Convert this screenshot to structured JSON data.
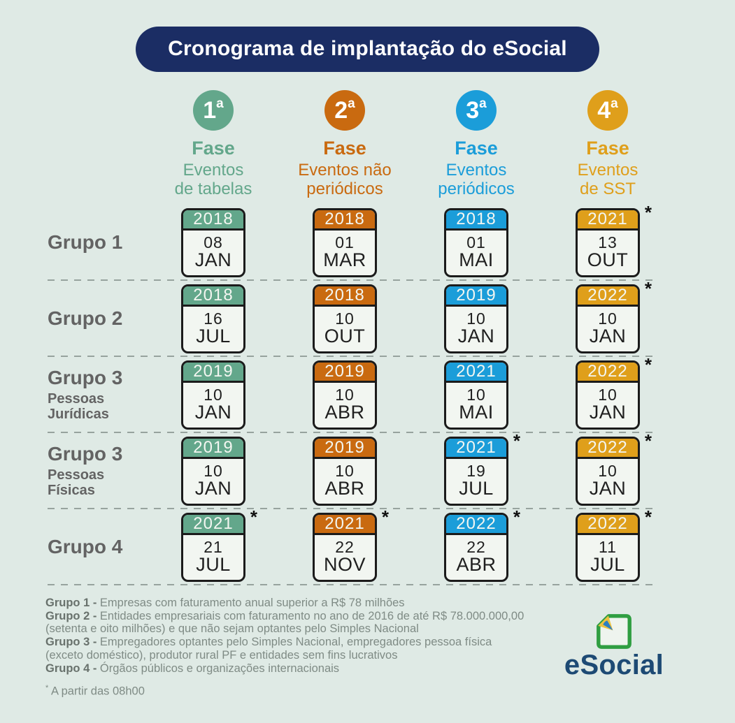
{
  "title": "Cronograma de implantação do eSocial",
  "phases": [
    {
      "numeral": "1",
      "ordinal": "a",
      "label": "Fase",
      "desc_line1": "Eventos",
      "desc_line2": "de tabelas",
      "color": "#63a78b"
    },
    {
      "numeral": "2",
      "ordinal": "a",
      "label": "Fase",
      "desc_line1": "Eventos não",
      "desc_line2": "periódicos",
      "color": "#c96a10"
    },
    {
      "numeral": "3",
      "ordinal": "a",
      "label": "Fase",
      "desc_line1": "Eventos",
      "desc_line2": "periódicos",
      "color": "#1b9dd9"
    },
    {
      "numeral": "4",
      "ordinal": "a",
      "label": "Fase",
      "desc_line1": "Eventos",
      "desc_line2": "de SST",
      "color": "#df9f1b"
    }
  ],
  "groups": [
    {
      "name": "Grupo 1",
      "subtitle": "",
      "cells": [
        {
          "year": "2018",
          "day": "08",
          "month": "JAN",
          "note": ""
        },
        {
          "year": "2018",
          "day": "01",
          "month": "MAR",
          "note": ""
        },
        {
          "year": "2018",
          "day": "01",
          "month": "MAI",
          "note": ""
        },
        {
          "year": "2021",
          "day": "13",
          "month": "OUT",
          "note": "*"
        }
      ]
    },
    {
      "name": "Grupo 2",
      "subtitle": "",
      "cells": [
        {
          "year": "2018",
          "day": "16",
          "month": "JUL",
          "note": ""
        },
        {
          "year": "2018",
          "day": "10",
          "month": "OUT",
          "note": ""
        },
        {
          "year": "2019",
          "day": "10",
          "month": "JAN",
          "note": ""
        },
        {
          "year": "2022",
          "day": "10",
          "month": "JAN",
          "note": "*"
        }
      ]
    },
    {
      "name": "Grupo 3",
      "subtitle": "Pessoas Jurídicas",
      "cells": [
        {
          "year": "2019",
          "day": "10",
          "month": "JAN",
          "note": ""
        },
        {
          "year": "2019",
          "day": "10",
          "month": "ABR",
          "note": ""
        },
        {
          "year": "2021",
          "day": "10",
          "month": "MAI",
          "note": ""
        },
        {
          "year": "2022",
          "day": "10",
          "month": "JAN",
          "note": "*"
        }
      ]
    },
    {
      "name": "Grupo 3",
      "subtitle": "Pessoas Físicas",
      "cells": [
        {
          "year": "2019",
          "day": "10",
          "month": "JAN",
          "note": ""
        },
        {
          "year": "2019",
          "day": "10",
          "month": "ABR",
          "note": ""
        },
        {
          "year": "2021",
          "day": "19",
          "month": "JUL",
          "note": "*"
        },
        {
          "year": "2022",
          "day": "10",
          "month": "JAN",
          "note": "*"
        }
      ]
    },
    {
      "name": "Grupo 4",
      "subtitle": "",
      "cells": [
        {
          "year": "2021",
          "day": "21",
          "month": "JUL",
          "note": "*"
        },
        {
          "year": "2021",
          "day": "22",
          "month": "NOV",
          "note": "*"
        },
        {
          "year": "2022",
          "day": "22",
          "month": "ABR",
          "note": "*"
        },
        {
          "year": "2022",
          "day": "11",
          "month": "JUL",
          "note": "*"
        }
      ]
    }
  ],
  "legend": [
    {
      "prefix": "Grupo 1 - ",
      "text": "Empresas com faturamento anual superior a R$ 78 milhões"
    },
    {
      "prefix": "Grupo 2 - ",
      "text": "Entidades empresariais com faturamento no ano de 2016 de até R$ 78.000.000,00 (setenta e oito milhões) e que não sejam optantes pelo Simples Nacional"
    },
    {
      "prefix": "Grupo 3 - ",
      "text": "Empregadores optantes pelo Simples Nacional, empregadores pessoa física (exceto doméstico), produtor rural PF e entidades sem fins lucrativos"
    },
    {
      "prefix": "Grupo 4 - ",
      "text": "Órgãos públicos e organizações internacionais"
    }
  ],
  "footnote": {
    "marker": "*",
    "text": " A partir das 08h00"
  },
  "logo": {
    "text": "eSocial"
  },
  "colors": {
    "background": "#dfeae5",
    "banner": "#1b2d64",
    "card_border": "#1b1b1b",
    "card_body": "#f2f6f1",
    "phase_green": "#63a78b",
    "phase_orange": "#c96a10",
    "phase_blue": "#1b9dd9",
    "phase_amber": "#df9f1b",
    "group_label": "#636363",
    "legend_text": "#7f8b85",
    "divider": "#97a39e",
    "logo_text": "#1d4a74"
  }
}
